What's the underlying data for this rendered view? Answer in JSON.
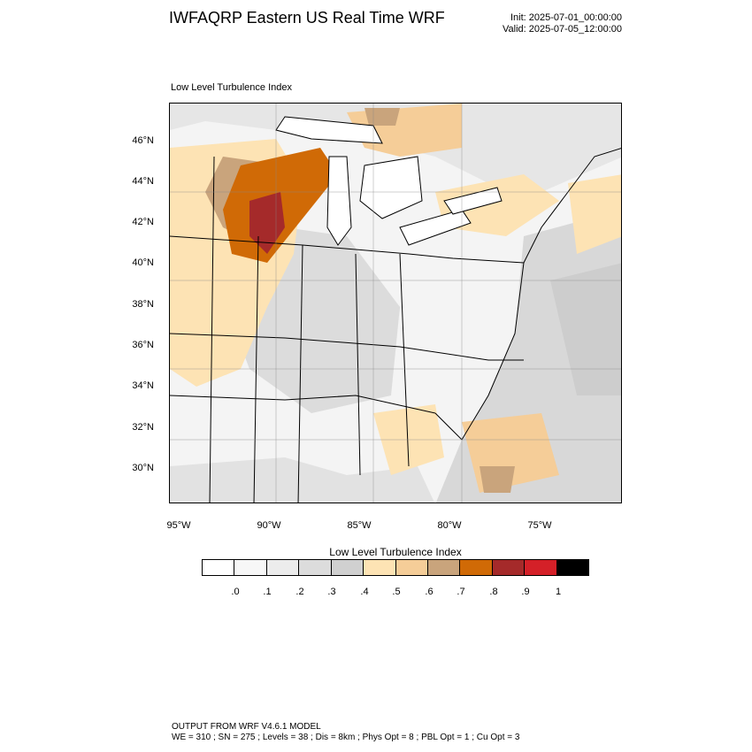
{
  "header": {
    "title": "IWFAQRP Eastern US Real Time WRF",
    "init": "Init: 2025-07-01_00:00:00",
    "valid": "Valid: 2025-07-05_12:00:00"
  },
  "map": {
    "subtitle": "Low Level Turbulence Index",
    "lat_labels": [
      "46°N",
      "44°N",
      "42°N",
      "40°N",
      "38°N",
      "36°N",
      "34°N",
      "32°N",
      "30°N"
    ],
    "lon_labels": [
      "95°W",
      "90°W",
      "85°W",
      "80°W",
      "75°W"
    ]
  },
  "colorbar": {
    "title": "Low Level Turbulence Index",
    "labels": [
      ".0",
      ".1",
      ".2",
      ".3",
      ".4",
      ".5",
      ".6",
      ".7",
      ".8",
      ".9",
      "1"
    ],
    "colors": [
      "#ffffff",
      "#f7f7f7",
      "#ececec",
      "#dcdcdc",
      "#d0d0d0",
      "#fde3b4",
      "#f5cd98",
      "#c9a47c",
      "#d06a06",
      "#a52a2a",
      "#d42028",
      "#000000"
    ]
  },
  "footer": {
    "line1": "OUTPUT FROM WRF V4.6.1 MODEL",
    "line2": "WE = 310 ; SN = 275 ; Levels = 38 ; Dis = 8km ; Phys Opt = 8 ; PBL Opt = 1 ; Cu Opt = 3"
  }
}
